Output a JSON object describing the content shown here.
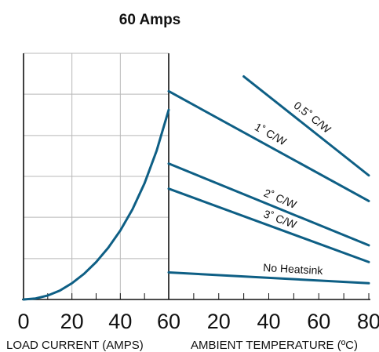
{
  "chart_data": {
    "type": "line",
    "title": "60 Amps",
    "left_panel": {
      "xlabel": "LOAD CURRENT (AMPS)",
      "xlim": [
        0,
        60
      ],
      "tick_labels": [
        "0",
        "20",
        "40",
        "60"
      ],
      "tick_values": [
        0,
        20,
        40,
        60
      ],
      "series": [
        {
          "x": [
            0,
            5,
            10,
            15,
            20,
            25,
            30,
            35,
            40,
            45,
            50,
            55,
            60
          ],
          "y": [
            0,
            0.2,
            0.8,
            1.8,
            3.3,
            5.2,
            7.6,
            10.5,
            14.0,
            18.3,
            23.6,
            30.2,
            38.5
          ]
        }
      ]
    },
    "right_panel": {
      "xlabel": "AMBIENT TEMPERATURE (ºC)",
      "xlim": [
        0,
        80
      ],
      "tick_labels": [
        "20",
        "40",
        "60",
        "80"
      ],
      "tick_values": [
        20,
        40,
        60,
        80
      ],
      "series": [
        {
          "name": "0.5˚ C/W",
          "x": [
            30,
            80
          ],
          "y": [
            45.3,
            25.2
          ]
        },
        {
          "name": "1˚ C/W",
          "x": [
            0,
            80
          ],
          "y": [
            42.3,
            20.0
          ]
        },
        {
          "name": "2˚ C/W",
          "x": [
            0,
            80
          ],
          "y": [
            27.6,
            11.0
          ]
        },
        {
          "name": "3˚ C/W",
          "x": [
            0,
            80
          ],
          "y": [
            22.5,
            7.6
          ]
        },
        {
          "name": "No Heatsink",
          "x": [
            0,
            80
          ],
          "y": [
            5.5,
            3.3
          ]
        }
      ]
    },
    "ylim": [
      0,
      50
    ],
    "y_gridlines": [
      0,
      8.3,
      16.7,
      25,
      33.3,
      41.7,
      50
    ],
    "grid": true,
    "colors": {
      "line": "#0e5f85",
      "grid": "#b8b8b8",
      "axis": "#111111"
    }
  }
}
